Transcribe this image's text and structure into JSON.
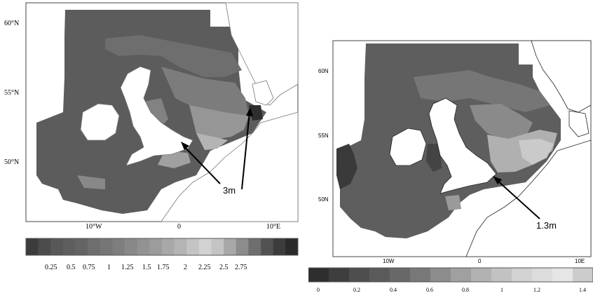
{
  "left_map": {
    "lat_labels": [
      "60°N",
      "55°N",
      "50°N"
    ],
    "lon_labels": [
      "10°W",
      "0",
      "10°E"
    ],
    "annotation": "3m",
    "colorbar_ticks": [
      "0.25",
      "0.5",
      "0.75",
      "1",
      "1.25",
      "1.5",
      "1.75",
      "2",
      "2.25",
      "2.5",
      "2.75"
    ],
    "colorbar_colors": [
      "#3c3c3c",
      "#4c4c4c",
      "#585858",
      "#5e5e5e",
      "#646464",
      "#6e6e6e",
      "#767676",
      "#7e7e7e",
      "#888888",
      "#929292",
      "#9c9c9c",
      "#a8a8a8",
      "#b4b4b4",
      "#c4c4c4",
      "#d2d2d2",
      "#c4c4c4",
      "#a8a8a8",
      "#8c8c8c",
      "#6e6e6e",
      "#525252",
      "#3c3c3c",
      "#2a2a2a"
    ]
  },
  "right_map": {
    "lat_labels": [
      "60N",
      "55N",
      "50N"
    ],
    "lon_labels": [
      "10W",
      "0",
      "10E"
    ],
    "annotation": "1.3m",
    "colorbar_ticks": [
      "0",
      "0.2",
      "0.4",
      "0.6",
      "0.8",
      "1",
      "1.2",
      "1.4"
    ],
    "colorbar_colors": [
      "#2e2e2e",
      "#3e3e3e",
      "#4e4e4e",
      "#5a5a5a",
      "#686868",
      "#787878",
      "#8c8c8c",
      "#a0a0a0",
      "#b2b2b2",
      "#c2c2c2",
      "#d2d2d2",
      "#dcdcdc",
      "#e6e6e6",
      "#cccccc"
    ]
  }
}
